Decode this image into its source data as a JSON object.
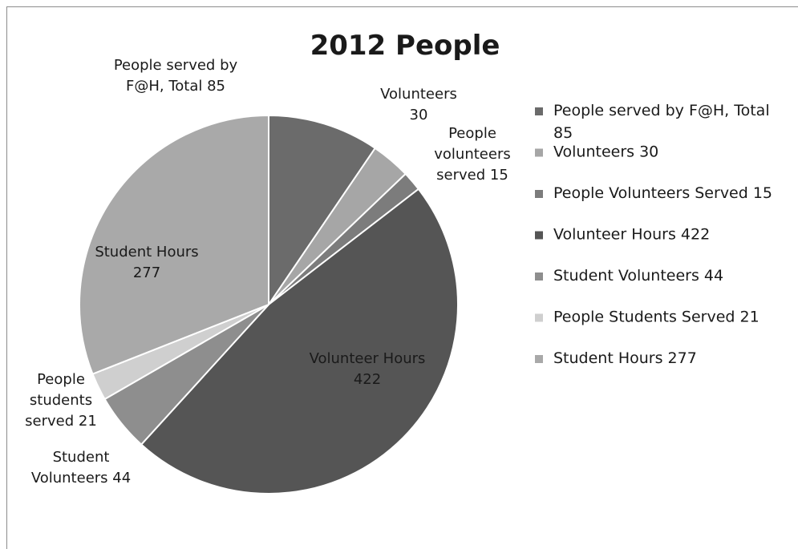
{
  "chart_data": {
    "type": "pie",
    "title": "2012 People",
    "legend_position": "right",
    "slices": [
      {
        "name": "People served by F@H, Total 85",
        "value": 85,
        "color": "#6b6b6b",
        "label_lines": [
          "People served by",
          "F@H, Total 85"
        ]
      },
      {
        "name": "Volunteers 30",
        "value": 30,
        "color": "#a6a6a6",
        "label_lines": [
          "Volunteers",
          "30"
        ]
      },
      {
        "name": "People Volunteers Served  15",
        "value": 15,
        "color": "#7c7c7c",
        "label_lines": [
          "People",
          "volunteers",
          "served 15"
        ]
      },
      {
        "name": "Volunteer Hours 422",
        "value": 422,
        "color": "#555555",
        "label_lines": [
          "Volunteer Hours",
          "422"
        ]
      },
      {
        "name": "Student Volunteers 44",
        "value": 44,
        "color": "#8e8e8e",
        "label_lines": [
          "Student",
          "Volunteers 44"
        ]
      },
      {
        "name": "People Students Served 21",
        "value": 21,
        "color": "#cfcfcf",
        "label_lines": [
          "People",
          "students",
          "served  21"
        ]
      },
      {
        "name": "Student Hours 277",
        "value": 277,
        "color": "#a9a9a9",
        "label_lines": [
          "Student Hours",
          "277"
        ]
      }
    ],
    "legend_lines": [
      [
        "People served by F@H, Total",
        "85"
      ],
      [
        "Volunteers 30"
      ],
      [
        "People Volunteers Served  15"
      ],
      [
        "Volunteer Hours 422"
      ],
      [
        "Student Volunteers 44"
      ],
      [
        "People Students Served 21"
      ],
      [
        "Student Hours 277"
      ]
    ]
  }
}
